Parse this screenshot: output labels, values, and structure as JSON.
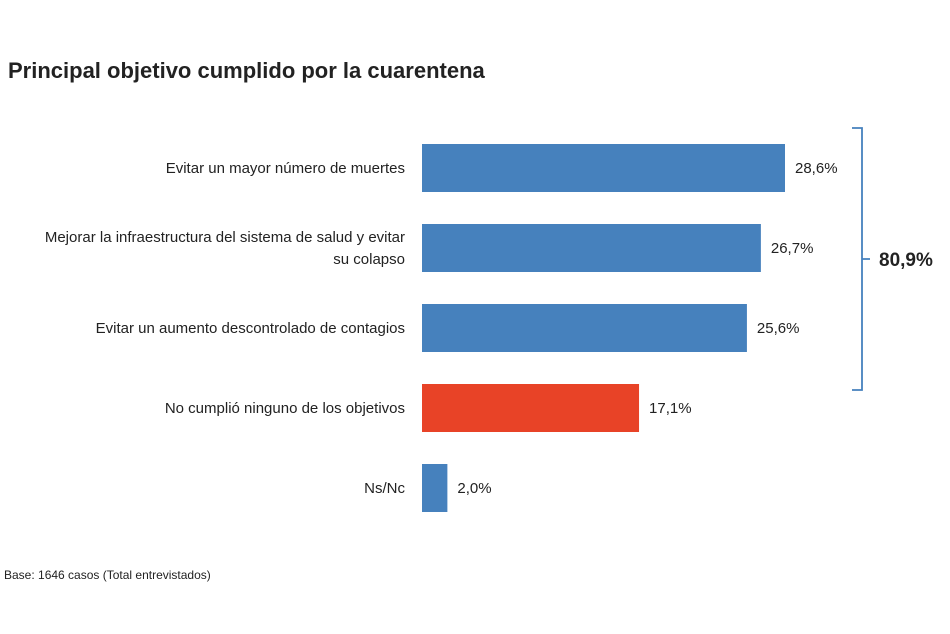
{
  "colors": {
    "primary": "#4681bd",
    "highlight": "#e84327",
    "bracket": "#4681bd"
  },
  "chart_data": {
    "type": "bar",
    "orientation": "horizontal",
    "title": "Principal objetivo cumplido por la cuarentena",
    "categories": [
      [
        "Evitar un mayor número de muertes"
      ],
      [
        "Mejorar la infraestructura del sistema de salud y evitar",
        "su colapso"
      ],
      [
        "Evitar un aumento descontrolado de contagios"
      ],
      [
        "No cumplió ninguno de los objetivos"
      ],
      [
        "Ns/Nc"
      ]
    ],
    "values": [
      28.6,
      26.7,
      25.6,
      17.1,
      2.0
    ],
    "value_labels": [
      "28,6%",
      "26,7%",
      "25,6%",
      "17,1%",
      "2,0%"
    ],
    "highlight_index": 3,
    "xlim": [
      0,
      100
    ],
    "grid": false,
    "bracket": {
      "from_index": 0,
      "to_index": 2,
      "label": "80,9%"
    }
  },
  "footer": {
    "base_note": "Base: 1646 casos (Total entrevistados)"
  }
}
